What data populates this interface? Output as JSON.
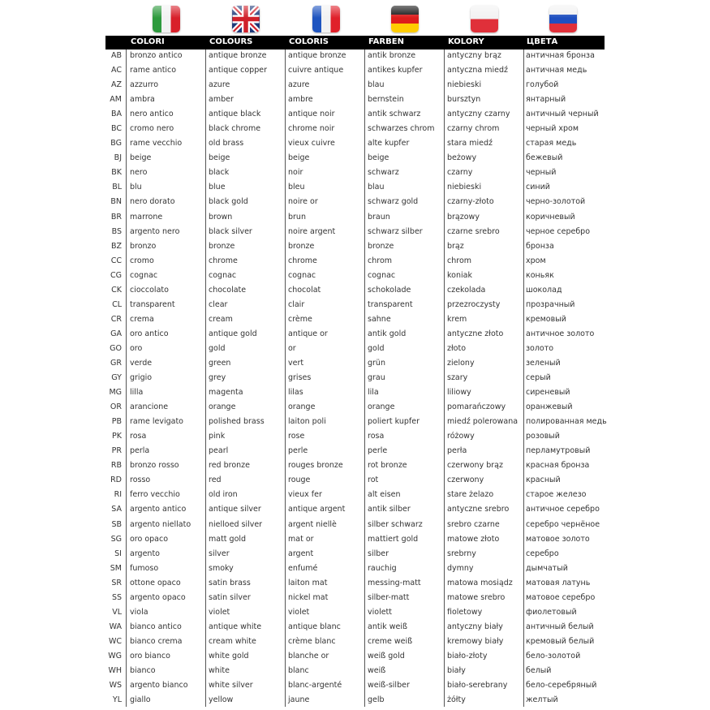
{
  "flags": [
    {
      "icon": "italy-flag-icon",
      "colors": [
        "#2e9a3e",
        "#f2f2f2",
        "#d8202a"
      ]
    },
    {
      "icon": "uk-flag-icon",
      "colors": [
        "#1f3a7a",
        "#ffffff",
        "#d0202a"
      ]
    },
    {
      "icon": "france-flag-icon",
      "colors": [
        "#1f55c0",
        "#f2f2f2",
        "#e0202a"
      ]
    },
    {
      "icon": "germany-flag-icon",
      "colors": [
        "#111111",
        "#dd1c1c",
        "#ffcc00"
      ]
    },
    {
      "icon": "poland-flag-icon",
      "colors": [
        "#f2f2f2",
        "#e0303a"
      ]
    },
    {
      "icon": "russia-flag-icon",
      "colors": [
        "#f2f2f2",
        "#1f4fc0",
        "#e0303a"
      ]
    }
  ],
  "headers": [
    "COLORI",
    "COLOURS",
    "COLORIS",
    "FARBEN",
    "KOLORY",
    "ЦВЕТА"
  ],
  "rows": [
    [
      "AB",
      "bronzo antico",
      "antique bronze",
      "antique bronze",
      "antik bronze",
      "antyczny brąz",
      "античная бронза"
    ],
    [
      "AC",
      "rame antico",
      "antique copper",
      "cuivre antique",
      "antikes kupfer",
      "antyczna miedź",
      "античная медь"
    ],
    [
      "AZ",
      "azzurro",
      "azure",
      "azure",
      "blau",
      "niebieski",
      "голубой"
    ],
    [
      "AM",
      "ambra",
      "amber",
      "ambre",
      "bernstein",
      "bursztyn",
      "янтарный"
    ],
    [
      "BA",
      "nero antico",
      "antique black",
      "antique noir",
      "antik schwarz",
      "antyczny czarny",
      "античный черный"
    ],
    [
      "BC",
      "cromo nero",
      "black chrome",
      "chrome noir",
      "schwarzes chrom",
      "czarny chrom",
      "черный хром"
    ],
    [
      "BG",
      "rame vecchio",
      "old brass",
      "vieux cuivre",
      "alte kupfer",
      "stara miedź",
      "старая медь"
    ],
    [
      "BJ",
      "beige",
      "beige",
      "beige",
      "beige",
      "beżowy",
      "бежевый"
    ],
    [
      "BK",
      "nero",
      "black",
      "noir",
      "schwarz",
      "czarny",
      "черный"
    ],
    [
      "BL",
      "blu",
      "blue",
      "bleu",
      "blau",
      "niebieski",
      "синий"
    ],
    [
      "BN",
      "nero dorato",
      "black gold",
      "noire or",
      "schwarz gold",
      "czarny-złoto",
      "черно-золотой"
    ],
    [
      "BR",
      "marrone",
      "brown",
      "brun",
      "braun",
      "brązowy",
      "коричневый"
    ],
    [
      "BS",
      "argento nero",
      "black silver",
      "noire argent",
      "schwarz silber",
      "czarne srebro",
      "черное серебро"
    ],
    [
      "BZ",
      "bronzo",
      "bronze",
      "bronze",
      "bronze",
      "brąz",
      "бронза"
    ],
    [
      "CC",
      "cromo",
      "chrome",
      "chrome",
      "chrom",
      "chrom",
      "хром"
    ],
    [
      "CG",
      "cognac",
      "cognac",
      "cognac",
      "cognac",
      "koniak",
      "коньяк"
    ],
    [
      "CK",
      "cioccolato",
      "chocolate",
      "chocolat",
      "schokolade",
      "czekolada",
      "шоколад"
    ],
    [
      "CL",
      "transparent",
      "clear",
      "clair",
      "transparent",
      "przezroczysty",
      "прозрачный"
    ],
    [
      "CR",
      "crema",
      "cream",
      "crème",
      "sahne",
      "krem",
      "кремовый"
    ],
    [
      "GA",
      "oro antico",
      "antique gold",
      "antique or",
      "antik gold",
      "antyczne złoto",
      "античное золото"
    ],
    [
      "GO",
      "oro",
      "gold",
      "or",
      "gold",
      "złoto",
      "золото"
    ],
    [
      "GR",
      "verde",
      "green",
      "vert",
      "grün",
      "zielony",
      "зеленый"
    ],
    [
      "GY",
      "grigio",
      "grey",
      "grises",
      "grau",
      "szary",
      "серый"
    ],
    [
      "MG",
      "lilla",
      "magenta",
      "lilas",
      "lila",
      "liliowy",
      "сиреневый"
    ],
    [
      "OR",
      "arancione",
      "orange",
      "orange",
      "orange",
      "pomarańczowy",
      "оранжевый"
    ],
    [
      "PB",
      "rame levigato",
      "polished brass",
      "laiton poli",
      "poliert kupfer",
      "miedź polerowana",
      "полированная медь"
    ],
    [
      "PK",
      "rosa",
      "pink",
      "rose",
      "rosa",
      "różowy",
      "розовый"
    ],
    [
      "PR",
      "perla",
      "pearl",
      "perle",
      "perle",
      "perła",
      "перламутровый"
    ],
    [
      "RB",
      "bronzo rosso",
      "red bronze",
      "rouges bronze",
      "rot bronze",
      "czerwony brąz",
      "красная бронза"
    ],
    [
      "RD",
      "rosso",
      "red",
      "rouge",
      "rot",
      "czerwony",
      "красный"
    ],
    [
      "RI",
      "ferro vecchio",
      "old iron",
      "vieux fer",
      "alt eisen",
      "stare żelazo",
      "старое железо"
    ],
    [
      "SA",
      "argento antico",
      "antique silver",
      "antique argent",
      "antik silber",
      "antyczne srebro",
      "античное серебро"
    ],
    [
      "SB",
      "argento niellato",
      "nielloed silver",
      "argent niellè",
      "silber schwarz",
      "srebro czarne",
      "серебро чернёное"
    ],
    [
      "SG",
      "oro opaco",
      "matt gold",
      "mat or",
      "mattiert gold",
      "matowe złoto",
      "матовое золото"
    ],
    [
      "SI",
      "argento",
      "silver",
      "argent",
      "silber",
      "srebrny",
      "серебро"
    ],
    [
      "SM",
      "fumoso",
      "smoky",
      "enfumé",
      "rauchig",
      "dymny",
      "дымчатый"
    ],
    [
      "SR",
      "ottone opaco",
      "satin brass",
      "laiton mat",
      "messing-matt",
      "matowa mosiądz",
      "матовая латунь"
    ],
    [
      "SS",
      "argento opaco",
      "satin silver",
      "nickel mat",
      "silber-matt",
      "matowe srebro",
      "матовое серебро"
    ],
    [
      "VL",
      "viola",
      "violet",
      "violet",
      "violett",
      "fioletowy",
      "фиолетовый"
    ],
    [
      "WA",
      "bianco antico",
      "antique white",
      "antique blanc",
      "antik weiß",
      "antyczny biały",
      "античный белый"
    ],
    [
      "WC",
      "bianco crema",
      "cream white",
      "crème blanc",
      "creme weiß",
      "kremowy biały",
      "кремовый белый"
    ],
    [
      "WG",
      "oro bianco",
      "white gold",
      "blanche or",
      "weiß gold",
      "biało-złoty",
      "бело-золотой"
    ],
    [
      "WH",
      "bianco",
      "white",
      "blanc",
      "weiß",
      "biały",
      "белый"
    ],
    [
      "WS",
      "argento bianco",
      "white silver",
      "blanc-argenté",
      "weiß-silber",
      "biało-serebrany",
      "бело-серебряный"
    ],
    [
      "YL",
      "giallo",
      "yellow",
      "jaune",
      "gelb",
      "żółty",
      "желтый"
    ]
  ]
}
